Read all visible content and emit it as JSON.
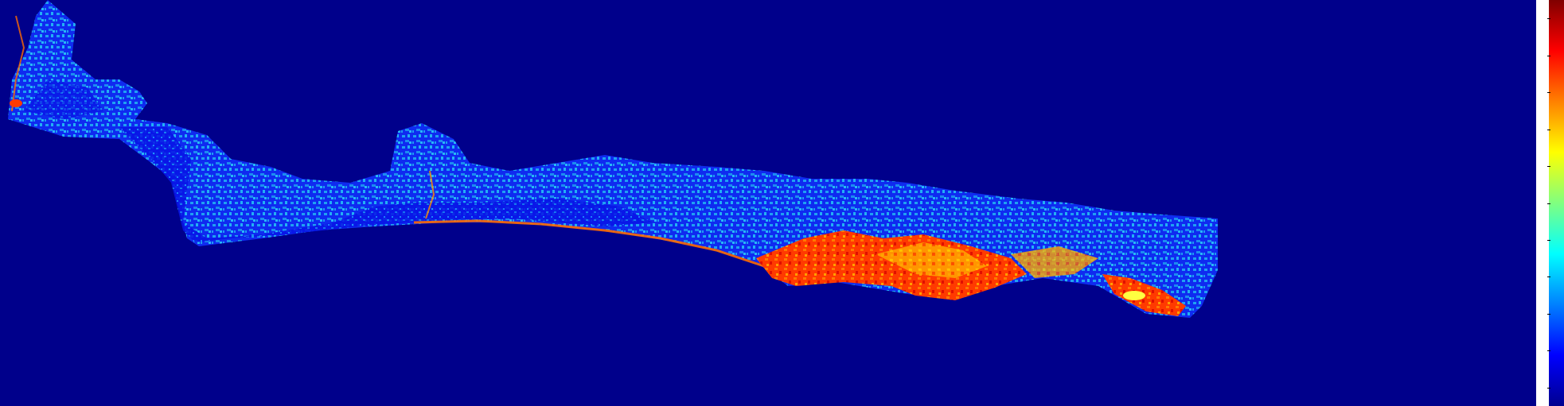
{
  "map": {
    "background_color": "#00008B",
    "colormap": "jet",
    "colormap_stops": [
      "#00008F",
      "#0000FF",
      "#0080FF",
      "#00FFFF",
      "#80FF80",
      "#FFFF00",
      "#FF8000",
      "#FF0000",
      "#800000"
    ],
    "dominant_land_colors": [
      "#0A10F0",
      "#1E90FF",
      "#1AA8F0"
    ],
    "hotspot_colors": [
      "#FF2A00",
      "#FF6A00",
      "#FFB000",
      "#FFFF40"
    ]
  },
  "colorbar": {
    "tick_count": 11,
    "tick_labels": []
  }
}
